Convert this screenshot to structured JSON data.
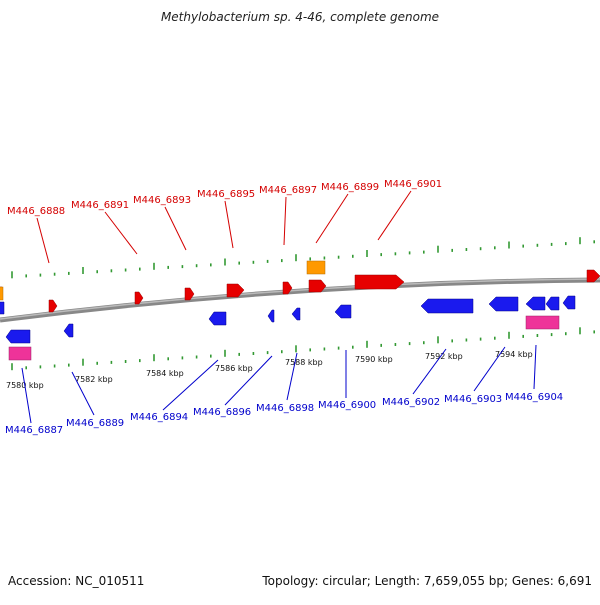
{
  "title": "Methylobacterium sp. 4-46, complete genome",
  "footer": {
    "accession": "Accession: NC_010511",
    "topology": "Topology: circular; Length: 7,659,055 bp; Genes: 6,691"
  },
  "colors": {
    "forward_gene": "#e60000",
    "reverse_gene": "#1a1aee",
    "rna_orange": "#ff9900",
    "rna_pink": "#ee3399",
    "backbone": "#888888",
    "tick": "#339933",
    "forward_label": "#d40000",
    "reverse_label": "#0000cc"
  },
  "scale_labels": [
    "7580 kbp",
    "7582 kbp",
    "7584 kbp",
    "7586 kbp",
    "7588 kbp",
    "7590 kbp",
    "7592 kbp",
    "7594 kbp"
  ],
  "forward_labels": [
    "M446_6888",
    "M446_6891",
    "M446_6893",
    "M446_6895",
    "M446_6897",
    "M446_6899",
    "M446_6901"
  ],
  "reverse_labels": [
    "M446_6887",
    "M446_6889",
    "M446_6894",
    "M446_6896",
    "M446_6898",
    "M446_6900",
    "M446_6902",
    "M446_6903",
    "M446_6904"
  ]
}
